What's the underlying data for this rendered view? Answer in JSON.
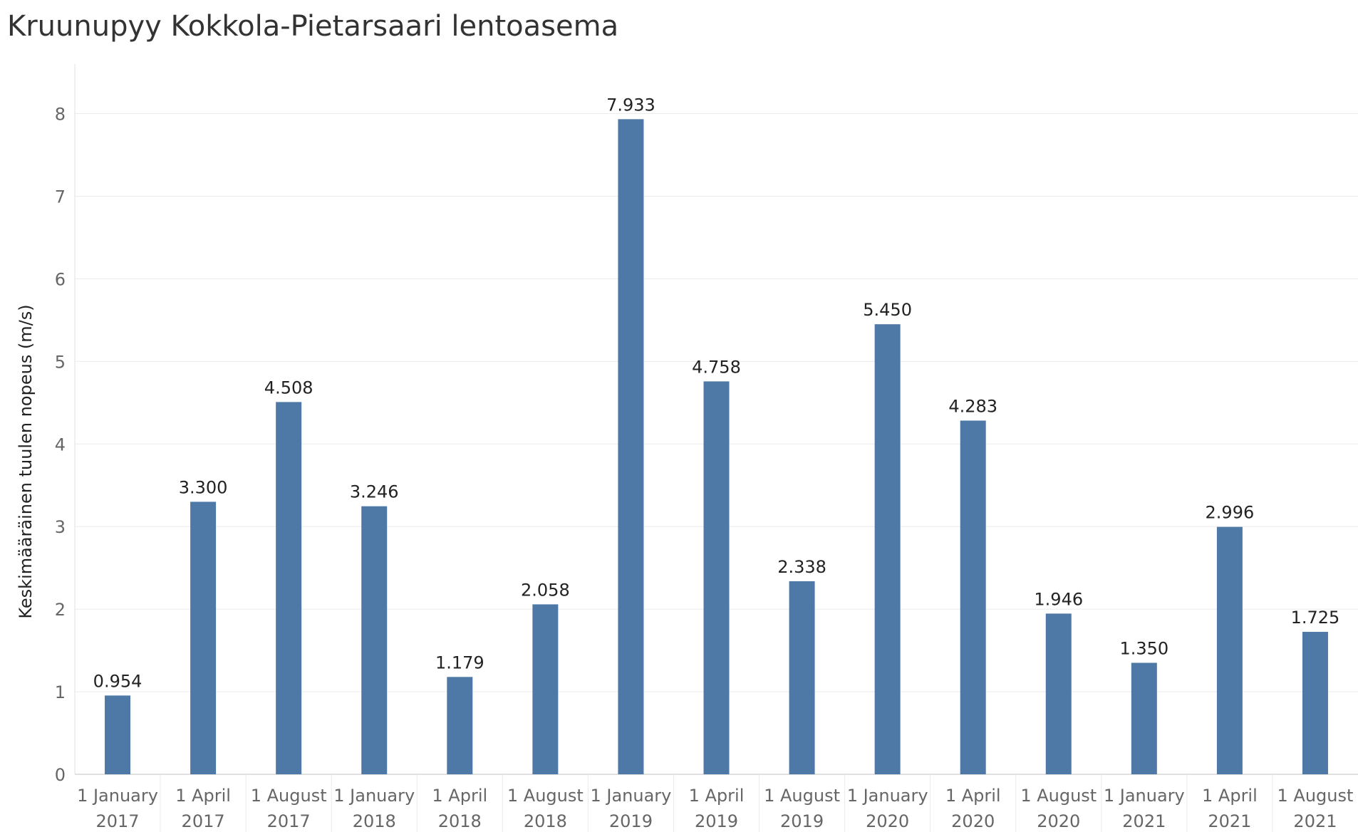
{
  "chart_data": {
    "type": "bar",
    "title": "Kruunupyy Kokkola-Pietarsaari lentoasema",
    "xlabel": "",
    "ylabel": "Keskimääräinen tuulen nopeus (m/s)",
    "ylim": [
      0,
      8.6
    ],
    "yticks": [
      "0",
      "1",
      "2",
      "3",
      "4",
      "5",
      "6",
      "7",
      "8"
    ],
    "grid": true,
    "categories": [
      [
        "1 January",
        "2017"
      ],
      [
        "1 April",
        "2017"
      ],
      [
        "1 August",
        "2017"
      ],
      [
        "1 January",
        "2018"
      ],
      [
        "1 April",
        "2018"
      ],
      [
        "1 August",
        "2018"
      ],
      [
        "1 January",
        "2019"
      ],
      [
        "1 April",
        "2019"
      ],
      [
        "1 August",
        "2019"
      ],
      [
        "1 January",
        "2020"
      ],
      [
        "1 April",
        "2020"
      ],
      [
        "1 August",
        "2020"
      ],
      [
        "1 January",
        "2021"
      ],
      [
        "1 April",
        "2021"
      ],
      [
        "1 August",
        "2021"
      ]
    ],
    "values": [
      0.954,
      3.3,
      4.508,
      3.246,
      1.179,
      2.058,
      7.933,
      4.758,
      2.338,
      5.45,
      4.283,
      1.946,
      1.35,
      2.996,
      1.725
    ],
    "value_labels": [
      "0.954",
      "3.300",
      "4.508",
      "3.246",
      "1.179",
      "2.058",
      "7.933",
      "4.758",
      "2.338",
      "5.450",
      "4.283",
      "1.946",
      "1.350",
      "2.996",
      "1.725"
    ],
    "bar_color": "#4e79a7"
  }
}
